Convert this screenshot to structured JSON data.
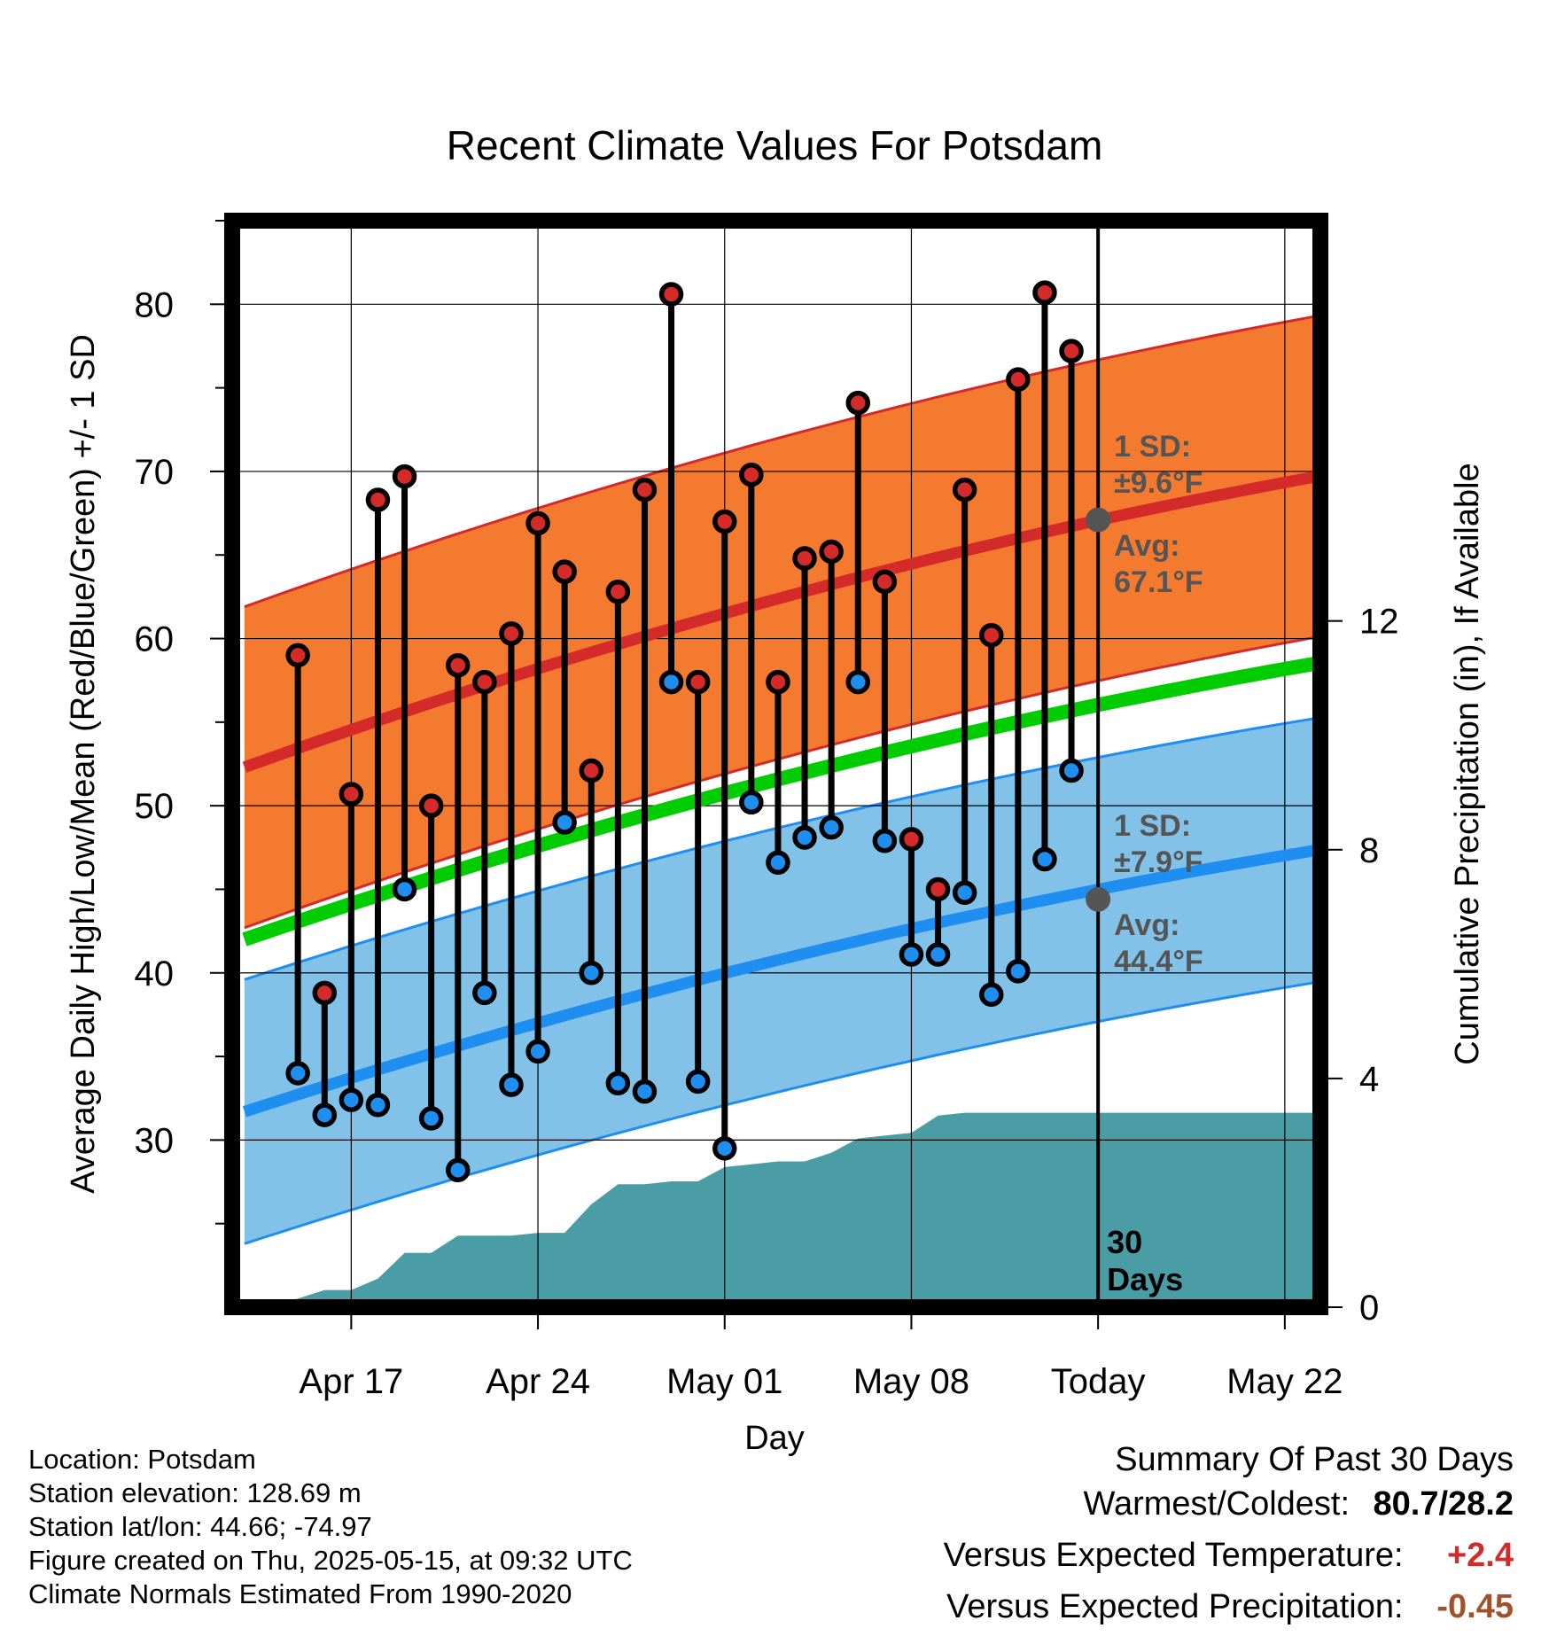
{
  "chart_data": {
    "type": "line",
    "title": "Recent Climate Values For Potsdam",
    "xlabel": "Day",
    "ylabel": "Average Daily High/Low/Mean (Red/Blue/Green) +/- 1 SD",
    "y2label": "Cumulative Precipitation (in), If Available",
    "ylim": [
      20,
      85
    ],
    "y2lim": [
      0,
      19
    ],
    "x_tick_labels": [
      "Apr 17",
      "Apr 24",
      "May 01",
      "May 08",
      "Today",
      "May 22"
    ],
    "y_ticks": [
      30,
      40,
      50,
      60,
      70,
      80
    ],
    "y2_ticks": [
      0,
      4,
      8,
      12
    ],
    "grid": true,
    "x_dates": [
      "2025-04-15",
      "2025-04-16",
      "2025-04-17",
      "2025-04-18",
      "2025-04-19",
      "2025-04-20",
      "2025-04-21",
      "2025-04-22",
      "2025-04-23",
      "2025-04-24",
      "2025-04-25",
      "2025-04-26",
      "2025-04-27",
      "2025-04-28",
      "2025-04-29",
      "2025-04-30",
      "2025-05-01",
      "2025-05-02",
      "2025-05-03",
      "2025-05-04",
      "2025-05-05",
      "2025-05-06",
      "2025-05-07",
      "2025-05-08",
      "2025-05-09",
      "2025-05-10",
      "2025-05-11",
      "2025-05-12",
      "2025-05-13",
      "2025-05-14"
    ],
    "daily_high": [
      59.0,
      38.8,
      50.7,
      68.3,
      69.7,
      50.0,
      58.4,
      57.4,
      60.3,
      66.9,
      64.0,
      52.1,
      62.8,
      68.9,
      80.6,
      57.4,
      67.0,
      69.8,
      57.4,
      64.8,
      65.2,
      74.1,
      63.4,
      48.0,
      45.0,
      68.9,
      60.2,
      75.5,
      80.7,
      77.2
    ],
    "daily_low": [
      34.0,
      31.5,
      32.4,
      32.1,
      45.0,
      31.3,
      28.2,
      38.8,
      33.3,
      35.3,
      49.0,
      40.0,
      33.4,
      32.9,
      57.4,
      33.5,
      29.5,
      50.2,
      46.6,
      48.1,
      48.7,
      57.4,
      47.9,
      41.1,
      41.1,
      44.8,
      38.7,
      40.1,
      46.8,
      52.1
    ],
    "normals": {
      "dates": [
        "2025-04-13",
        "2025-05-25"
      ],
      "high_avg": [
        52.3,
        70.2
      ],
      "high_sd": 9.6,
      "low_avg": [
        31.7,
        47.8
      ],
      "low_sd": 7.9,
      "mean_avg": [
        42.0,
        59.0
      ]
    },
    "precip_dates": [
      "2025-04-13",
      "2025-04-14",
      "2025-04-15",
      "2025-04-16",
      "2025-04-17",
      "2025-04-18",
      "2025-04-19",
      "2025-04-20",
      "2025-04-21",
      "2025-04-22",
      "2025-04-23",
      "2025-04-24",
      "2025-04-25",
      "2025-04-26",
      "2025-04-27",
      "2025-04-28",
      "2025-04-29",
      "2025-04-30",
      "2025-05-01",
      "2025-05-02",
      "2025-05-03",
      "2025-05-04",
      "2025-05-05",
      "2025-05-06",
      "2025-05-07",
      "2025-05-08",
      "2025-05-09",
      "2025-05-10",
      "2025-05-11",
      "2025-05-12",
      "2025-05-13",
      "2025-05-14",
      "2025-05-25"
    ],
    "cumulative_precip": [
      0.0,
      0.0,
      0.15,
      0.3,
      0.3,
      0.5,
      0.95,
      0.95,
      1.25,
      1.25,
      1.25,
      1.3,
      1.3,
      1.8,
      2.15,
      2.15,
      2.2,
      2.2,
      2.45,
      2.5,
      2.55,
      2.55,
      2.7,
      2.95,
      3.0,
      3.05,
      3.35,
      3.4,
      3.4,
      3.4,
      3.4,
      3.4,
      3.4
    ],
    "annotations": {
      "high_sd_label": "1 SD:",
      "high_sd_value": "±9.6°F",
      "high_avg_label": "Avg:",
      "high_avg_value": "67.1°F",
      "low_sd_label": "1 SD:",
      "low_sd_value": "±7.9°F",
      "low_avg_label": "Avg:",
      "low_avg_value": "44.4°F",
      "today_high_avg": 67.1,
      "today_low_avg": 44.4,
      "days_line1": "30",
      "days_line2": "Days"
    }
  },
  "colors": {
    "high_band": "#f47a30",
    "high_line": "#d42a2a",
    "low_band": "#82c1e8",
    "low_line": "#1e8ef0",
    "mean_line": "#00cc00",
    "precip": "#4a9ca5",
    "high_dot": "#d42a2a",
    "low_dot": "#1e8ef0",
    "avg_dot": "#555555",
    "annotation": "#555555",
    "warm": "#d42a2a",
    "precip_anom": "#a0522d"
  },
  "info": {
    "location": "Location: Potsdam",
    "elevation": "Station elevation: 128.69 m",
    "latlon": "Station lat/lon: 44.66; -74.97",
    "created": "Figure created on Thu, 2025-05-15, at 09:32 UTC",
    "normals": "Climate Normals Estimated From 1990-2020"
  },
  "summary": {
    "title": "Summary Of Past 30 Days",
    "warmcold_label": "Warmest/Coldest:",
    "warmcold_value": "80.7/28.2",
    "temp_label": "Versus Expected Temperature:",
    "temp_value": "+2.4",
    "precip_label": "Versus Expected Precipitation:",
    "precip_value": "-0.45"
  }
}
